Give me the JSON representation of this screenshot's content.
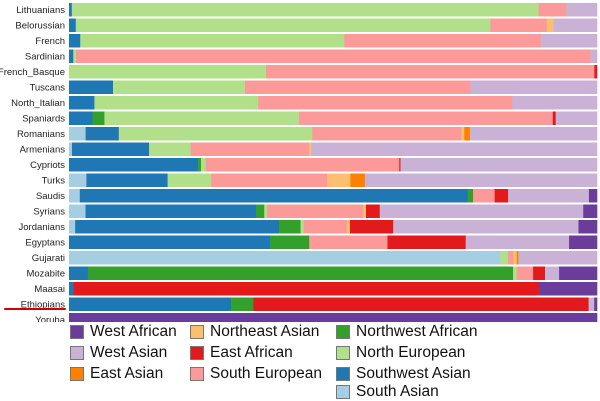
{
  "chart_data": {
    "type": "bar",
    "orientation": "horizontal",
    "stacked": true,
    "normalized": true,
    "title": "",
    "xlabel": "",
    "ylabel": "",
    "xlim": [
      0,
      1
    ],
    "highlighted_category": "Ethiopians",
    "categories": [
      "Lithuanians",
      "Belorussian",
      "French",
      "Sardinian",
      "French_Basque",
      "Tuscans",
      "North_Italian",
      "Spaniards",
      "Romanians",
      "Armenians",
      "Cypriots",
      "Turks",
      "Saudis",
      "Syrians",
      "Jordanians",
      "Egyptans",
      "Gujarati",
      "Mozabite",
      "Maasai",
      "Ethiopians",
      "Yoruba"
    ],
    "series": [
      {
        "name": "South Asian",
        "color": "#a6cee3",
        "values": [
          0,
          0,
          0,
          0,
          0,
          0,
          0,
          0,
          0.03,
          0.005,
          0,
          0.03,
          0.02,
          0.03,
          0.01,
          0,
          0.8,
          0,
          0,
          0,
          0
        ]
      },
      {
        "name": "Southwest Asian",
        "color": "#1f78b4",
        "values": [
          0.005,
          0.012,
          0.02,
          0.008,
          0,
          0.08,
          0.045,
          0.04,
          0.06,
          0.13,
          0.22,
          0.14,
          0.72,
          0.31,
          0.33,
          0.36,
          0,
          0.035,
          0.008,
          0.29,
          0
        ]
      },
      {
        "name": "Northwest African",
        "color": "#33a02c",
        "values": [
          0,
          0,
          0,
          0,
          0,
          0,
          0,
          0.02,
          0,
          0,
          0.005,
          0,
          0.01,
          0.015,
          0.035,
          0.07,
          0,
          0.785,
          0,
          0.04,
          0
        ]
      },
      {
        "name": "North European",
        "color": "#b2df8a",
        "values": [
          0.84,
          0.735,
          0.47,
          0.005,
          0.375,
          0.24,
          0.29,
          0.33,
          0.35,
          0.07,
          0.008,
          0.075,
          0,
          0.005,
          0.005,
          0,
          0.015,
          0.007,
          0,
          0,
          0
        ]
      },
      {
        "name": "South European",
        "color": "#fb9a99",
        "values": [
          0.05,
          0.1,
          0.35,
          0.965,
          0.625,
          0.41,
          0.45,
          0.43,
          0.27,
          0.2,
          0.33,
          0.2,
          0.04,
          0.175,
          0.07,
          0.14,
          0.01,
          0.03,
          0,
          0,
          0
        ]
      },
      {
        "name": "Northeast Asian",
        "color": "#fdbf6f",
        "values": [
          0,
          0.012,
          0,
          0,
          0,
          0,
          0,
          0,
          0.005,
          0.003,
          0,
          0.04,
          0,
          0.005,
          0.005,
          0,
          0.006,
          0,
          0,
          0,
          0
        ]
      },
      {
        "name": "East Asian",
        "color": "#ff7f00",
        "values": [
          0,
          0,
          0,
          0,
          0,
          0,
          0,
          0,
          0.01,
          0,
          0,
          0.025,
          0,
          0,
          0,
          0,
          0.003,
          0,
          0,
          0,
          0
        ]
      },
      {
        "name": "East African",
        "color": "#e31a1c",
        "values": [
          0,
          0,
          0,
          0,
          0.005,
          0,
          0,
          0.005,
          0,
          0,
          0.002,
          0,
          0.025,
          0.025,
          0.07,
          0.14,
          0,
          0.022,
          0.82,
          0.6,
          0
        ]
      },
      {
        "name": "West Asian",
        "color": "#cab2d6",
        "values": [
          0.055,
          0.077,
          0.1,
          0.012,
          0,
          0.23,
          0.15,
          0.07,
          0.23,
          0.482,
          0.335,
          0.4,
          0.15,
          0.37,
          0.3,
          0.185,
          0.146,
          0.026,
          0,
          0.01,
          0
        ]
      },
      {
        "name": "West African",
        "color": "#6a3d9a",
        "values": [
          0,
          0,
          0,
          0,
          0,
          0,
          0,
          0,
          0,
          0,
          0,
          0,
          0.015,
          0.025,
          0.03,
          0.05,
          0,
          0.07,
          0.102,
          0.005,
          1.0
        ]
      }
    ]
  },
  "legend": {
    "items": [
      {
        "label": "West African",
        "color": "#6a3d9a"
      },
      {
        "label": "West Asian",
        "color": "#cab2d6"
      },
      {
        "label": "East Asian",
        "color": "#ff7f00"
      },
      {
        "label": "Northeast Asian",
        "color": "#fdbf6f"
      },
      {
        "label": "East African",
        "color": "#e31a1c"
      },
      {
        "label": "South European",
        "color": "#fb9a99"
      },
      {
        "label": "Northwest African",
        "color": "#33a02c"
      },
      {
        "label": "North European",
        "color": "#b2df8a"
      },
      {
        "label": "Southwest Asian",
        "color": "#1f78b4"
      },
      {
        "label": "South Asian",
        "color": "#a6cee3"
      }
    ]
  }
}
